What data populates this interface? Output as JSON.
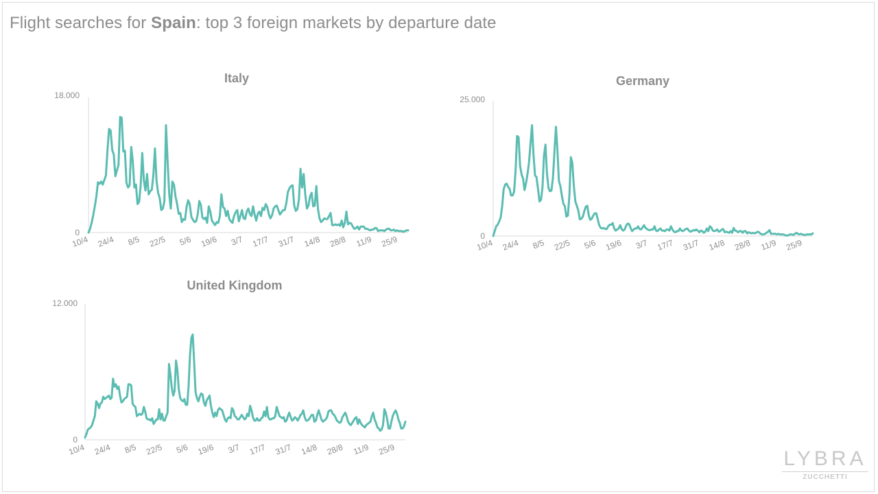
{
  "header": {
    "title_prefix": "Flight searches for ",
    "title_country": "Spain",
    "title_suffix": ": top 3 foreign markets by departure date"
  },
  "series_color": "#5bbcb1",
  "logo": {
    "name": "LYBRA",
    "sub": "ZUCCHETTI"
  },
  "chart_data": [
    {
      "type": "line",
      "title": "Italy",
      "x_ticks": [
        "10/4",
        "24/4",
        "8/5",
        "22/5",
        "5/6",
        "19/6",
        "3/7",
        "17/7",
        "31/7",
        "14/8",
        "28/8",
        "11/9",
        "25/9"
      ],
      "ylim": [
        0,
        18000
      ],
      "y_ticks": [
        "0",
        "18.000"
      ],
      "x_start": "10/4",
      "values": [
        0,
        500,
        1300,
        2300,
        3500,
        4800,
        6700,
        6500,
        6800,
        6400,
        7000,
        7600,
        11000,
        13800,
        13600,
        11000,
        10400,
        7500,
        8300,
        9000,
        15400,
        15300,
        10800,
        10900,
        6600,
        6000,
        6300,
        11400,
        9500,
        6000,
        6400,
        3800,
        4100,
        6300,
        10600,
        7000,
        5600,
        7800,
        5100,
        5500,
        5700,
        7700,
        11200,
        6900,
        5300,
        4600,
        3000,
        3200,
        4200,
        14300,
        9600,
        5100,
        3200,
        6800,
        6400,
        4800,
        3800,
        2500,
        2600,
        1400,
        1800,
        1700,
        3400,
        4300,
        3800,
        2100,
        1700,
        1400,
        1500,
        2400,
        4200,
        3700,
        2000,
        1800,
        2000,
        1300,
        3500,
        2800,
        1600,
        1300,
        1000,
        1400,
        1300,
        2200,
        5100,
        3400,
        3200,
        2200,
        2900,
        1800,
        1500,
        1300,
        2200,
        2700,
        3000,
        1500,
        2200,
        3000,
        1900,
        1800,
        2800,
        3200,
        2500,
        2200,
        3500,
        2400,
        1600,
        2500,
        2800,
        2200,
        3300,
        3000,
        3800,
        3400,
        2400,
        1900,
        2300,
        3200,
        3500,
        3600,
        3000,
        2400,
        2700,
        3000,
        3000,
        3900,
        5400,
        5900,
        6200,
        6300,
        3600,
        2900,
        3100,
        4400,
        8500,
        6000,
        7800,
        5100,
        3200,
        3600,
        4800,
        5300,
        3500,
        3600,
        6200,
        3200,
        1900,
        1400,
        1600,
        1900,
        1800,
        1800,
        2200,
        2600,
        1000,
        1000,
        1100,
        1000,
        1100,
        900,
        1600,
        700,
        1300,
        2800,
        1100,
        1300,
        1200,
        800,
        500,
        600,
        800,
        400,
        800,
        800,
        800,
        500,
        500,
        400,
        300,
        400,
        400,
        600,
        600,
        200,
        300,
        300,
        300,
        200,
        400,
        500,
        500,
        300,
        300,
        400,
        200,
        300,
        200,
        200,
        200,
        100,
        200,
        300,
        300
      ]
    },
    {
      "type": "line",
      "title": "Germany",
      "x_ticks": [
        "10/4",
        "24/4",
        "8/5",
        "22/5",
        "5/6",
        "19/6",
        "3/7",
        "17/7",
        "31/7",
        "14/8",
        "28/8",
        "11/9",
        "25/9"
      ],
      "ylim": [
        0,
        25000
      ],
      "y_ticks": [
        "0",
        "25.000"
      ],
      "x_start": "10/4",
      "values": [
        0,
        900,
        1800,
        2100,
        2700,
        3400,
        5500,
        8600,
        9500,
        9700,
        9100,
        8700,
        7500,
        7500,
        8200,
        12200,
        18500,
        18300,
        13000,
        11400,
        10600,
        8500,
        9800,
        11500,
        13700,
        17100,
        20500,
        15000,
        11200,
        10900,
        8800,
        6400,
        6700,
        9000,
        14800,
        16900,
        11600,
        8900,
        8300,
        8400,
        10700,
        15600,
        20200,
        16000,
        10200,
        9200,
        7400,
        6000,
        5500,
        3600,
        3800,
        7500,
        14600,
        13500,
        9200,
        6400,
        5600,
        4700,
        3100,
        3200,
        3600,
        4600,
        5400,
        5600,
        3800,
        3000,
        3200,
        3800,
        4200,
        4200,
        3100,
        2000,
        1500,
        1400,
        1500,
        1300,
        1300,
        1800,
        2100,
        2100,
        2400,
        1400,
        1000,
        1200,
        1400,
        2000,
        1300,
        1000,
        1200,
        1900,
        2300,
        2200,
        1500,
        900,
        1200,
        1400,
        1400,
        1800,
        1300,
        1200,
        1600,
        2000,
        1500,
        1300,
        1100,
        1100,
        1200,
        1200,
        1800,
        1000,
        900,
        1200,
        1400,
        1000,
        1000,
        900,
        1200,
        1200,
        1000,
        1800,
        1200,
        800,
        700,
        900,
        900,
        1400,
        1000,
        900,
        1100,
        1300,
        1400,
        1000,
        800,
        900,
        1100,
        1000,
        1200,
        1000,
        700,
        1000,
        900,
        600,
        800,
        1400,
        900,
        1800,
        1600,
        1000,
        900,
        1000,
        1200,
        800,
        900,
        1200,
        1300,
        700,
        800,
        700,
        600,
        900,
        600,
        1500,
        1000,
        900,
        700,
        900,
        900,
        600,
        900,
        900,
        500,
        700,
        600,
        500,
        600,
        500,
        600,
        800,
        700,
        400,
        300,
        300,
        400,
        600,
        800,
        1100,
        400,
        400,
        400,
        400,
        300,
        400,
        300,
        300,
        300,
        200,
        100,
        100,
        200,
        300,
        300,
        200,
        400,
        600,
        400,
        300,
        400,
        300,
        200,
        200,
        300,
        300,
        300,
        300,
        500
      ]
    },
    {
      "type": "line",
      "title": "United Kingdom",
      "x_ticks": [
        "10/4",
        "24/4",
        "8/5",
        "22/5",
        "5/6",
        "19/6",
        "3/7",
        "17/7",
        "31/7",
        "14/8",
        "28/8",
        "11/9",
        "25/9"
      ],
      "ylim": [
        0,
        12000
      ],
      "y_ticks": [
        "0",
        "12.000"
      ],
      "x_start": "10/4",
      "values": [
        200,
        500,
        900,
        1000,
        1100,
        1300,
        1700,
        2100,
        3400,
        3200,
        2800,
        3200,
        3300,
        3800,
        3600,
        3700,
        3800,
        3900,
        3600,
        3700,
        5400,
        4700,
        4900,
        4500,
        4700,
        3900,
        3300,
        3400,
        3600,
        3700,
        3800,
        4900,
        4900,
        4800,
        3200,
        3000,
        2900,
        2100,
        2200,
        2300,
        2200,
        2300,
        2900,
        2500,
        1900,
        1800,
        1800,
        1700,
        1900,
        1400,
        1600,
        1800,
        1800,
        2700,
        1800,
        2300,
        1700,
        1700,
        2100,
        2400,
        6700,
        5800,
        4600,
        3900,
        4300,
        7000,
        6200,
        4500,
        3700,
        3500,
        3400,
        3600,
        3100,
        3100,
        4700,
        7400,
        9000,
        9300,
        6800,
        4200,
        3700,
        3400,
        3800,
        4100,
        4000,
        3300,
        3000,
        3500,
        3700,
        3900,
        3000,
        2400,
        2000,
        2400,
        2100,
        2600,
        2800,
        2700,
        2600,
        2200,
        1800,
        1600,
        1900,
        2000,
        1900,
        2800,
        2600,
        2100,
        2000,
        1800,
        1800,
        2000,
        2200,
        2000,
        1800,
        1900,
        2300,
        2100,
        3000,
        2600,
        2000,
        1700,
        1700,
        1900,
        1700,
        1700,
        1900,
        2000,
        2500,
        2100,
        2900,
        2000,
        1800,
        1800,
        1900,
        1900,
        2100,
        2900,
        2500,
        2100,
        2000,
        1900,
        2000,
        1600,
        1700,
        2100,
        2400,
        2000,
        1700,
        1800,
        2000,
        1900,
        1700,
        1900,
        2200,
        2300,
        2600,
        2000,
        1700,
        1700,
        1800,
        2000,
        2200,
        2200,
        1600,
        1700,
        2200,
        2600,
        2200,
        1800,
        1600,
        1700,
        1800,
        2000,
        2500,
        2600,
        2600,
        2300,
        2200,
        2000,
        1700,
        1600,
        1500,
        1600,
        2000,
        2200,
        2400,
        2100,
        1600,
        1400,
        1300,
        1500,
        1700,
        1900,
        2000,
        1400,
        1800,
        1500,
        1300,
        1200,
        1100,
        1300,
        1400,
        1500,
        1600,
        2100,
        2400,
        1800,
        1500,
        1100,
        1000,
        800,
        900,
        1300,
        2700,
        2400,
        1800,
        1000,
        1000,
        1600,
        2100,
        2400,
        2600,
        2300,
        1800,
        1500,
        1000,
        1000,
        1200,
        1600
      ]
    }
  ]
}
